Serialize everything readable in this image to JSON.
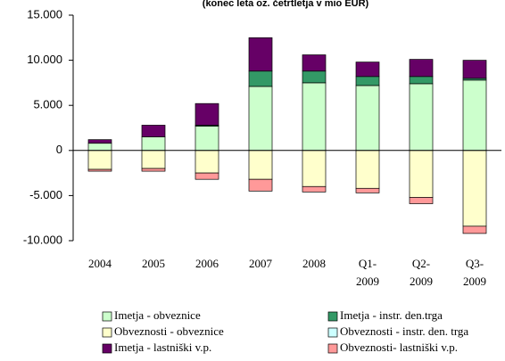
{
  "chart_data": {
    "type": "bar",
    "stacked": true,
    "title": "(konec leta oz. četrtletja v mio EUR)",
    "categories": [
      "2004",
      "2005",
      "2006",
      "2007",
      "2008",
      "Q1-\n2009",
      "Q2-\n2009",
      "Q3-\n2009"
    ],
    "series": [
      {
        "name": "Imetja - obveznice",
        "color": "#ccffcc",
        "values": [
          800,
          1500,
          2700,
          7100,
          7500,
          7200,
          7400,
          7800
        ]
      },
      {
        "name": "Imetja - instr. den.trga",
        "color": "#339966",
        "values": [
          0,
          0,
          100,
          1700,
          1300,
          1000,
          800,
          200
        ]
      },
      {
        "name": "Obveznosti - obveznice",
        "color": "#ffffcc",
        "values": [
          -2100,
          -2000,
          -2500,
          -3200,
          -4000,
          -4200,
          -5200,
          -8400
        ]
      },
      {
        "name": "Obveznosti - instr. den. trga",
        "color": "#ccffff",
        "values": [
          0,
          0,
          0,
          0,
          0,
          0,
          0,
          0
        ]
      },
      {
        "name": "Imetja - lastniški v.p.",
        "color": "#660066",
        "values": [
          400,
          1300,
          2400,
          3700,
          1800,
          1600,
          1900,
          2000
        ]
      },
      {
        "name": "Obveznosti- lastniški v.p.",
        "color": "#ff9999",
        "values": [
          -200,
          -300,
          -700,
          -1300,
          -600,
          -500,
          -700,
          -800
        ]
      }
    ],
    "ylim": [
      -10000,
      15000
    ],
    "yticks": [
      {
        "value": -10000,
        "label": "-10.000"
      },
      {
        "value": -5000,
        "label": "-5.000"
      },
      0,
      {
        "value": 5000,
        "label": "5.000"
      },
      {
        "value": 10000,
        "label": "10.000"
      },
      {
        "value": 15000,
        "label": "15.000"
      }
    ]
  }
}
